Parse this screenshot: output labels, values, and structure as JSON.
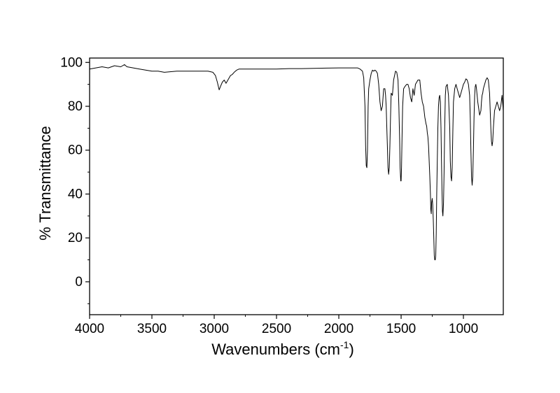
{
  "chart_data": {
    "type": "line",
    "xlabel": "Wavenumbers (cm",
    "xlabel_superscript": "-1",
    "xlabel_suffix": ")",
    "ylabel": "% Transmittance",
    "xlim": [
      4000,
      680
    ],
    "ylim": [
      -15,
      102
    ],
    "x_reversed": true,
    "grid": false,
    "x_ticks": [
      4000,
      3500,
      3000,
      2500,
      2000,
      1500,
      1000
    ],
    "x_tick_labels": [
      "4000",
      "3500",
      "3000",
      "2500",
      "2000",
      "1500",
      "1000"
    ],
    "y_ticks": [
      0,
      20,
      40,
      60,
      80,
      100
    ],
    "y_tick_labels": [
      "0",
      "20",
      "40",
      "60",
      "80",
      "100"
    ],
    "series": [
      {
        "color": "#000000",
        "x": [
          4000,
          3950,
          3900,
          3850,
          3800,
          3750,
          3720,
          3700,
          3650,
          3600,
          3550,
          3500,
          3450,
          3400,
          3300,
          3200,
          3100,
          3050,
          3010,
          2990,
          2975,
          2960,
          2950,
          2935,
          2920,
          2905,
          2890,
          2870,
          2855,
          2840,
          2820,
          2800,
          2700,
          2600,
          2500,
          2400,
          2300,
          2200,
          2100,
          2000,
          1900,
          1850,
          1830,
          1810,
          1800,
          1790,
          1785,
          1780,
          1775,
          1770,
          1765,
          1760,
          1750,
          1740,
          1730,
          1720,
          1710,
          1700,
          1690,
          1680,
          1670,
          1660,
          1650,
          1640,
          1630,
          1625,
          1620,
          1615,
          1610,
          1605,
          1600,
          1595,
          1590,
          1585,
          1580,
          1570,
          1560,
          1545,
          1535,
          1525,
          1518,
          1512,
          1508,
          1503,
          1500,
          1497,
          1493,
          1488,
          1480,
          1470,
          1455,
          1445,
          1435,
          1425,
          1415,
          1405,
          1395,
          1385,
          1375,
          1365,
          1350,
          1340,
          1330,
          1320,
          1310,
          1300,
          1295,
          1290,
          1285,
          1280,
          1275,
          1270,
          1265,
          1262,
          1258,
          1255,
          1250,
          1246,
          1242,
          1238,
          1234,
          1230,
          1226,
          1222,
          1218,
          1214,
          1210,
          1205,
          1200,
          1195,
          1190,
          1185,
          1180,
          1176,
          1172,
          1168,
          1165,
          1160,
          1155,
          1150,
          1145,
          1140,
          1130,
          1120,
          1110,
          1105,
          1100,
          1095,
          1090,
          1085,
          1080,
          1070,
          1060,
          1050,
          1040,
          1030,
          1020,
          1010,
          1000,
          990,
          980,
          970,
          960,
          950,
          945,
          940,
          935,
          930,
          925,
          920,
          915,
          910,
          905,
          900,
          895,
          890,
          885,
          880,
          870,
          860,
          855,
          850,
          845,
          840,
          830,
          820,
          810,
          800,
          790,
          785,
          780,
          775,
          770,
          765,
          760,
          750,
          740,
          730,
          720,
          710,
          700,
          690,
          680
        ],
        "y": [
          97,
          97.5,
          98,
          97.5,
          98.5,
          98,
          99,
          98,
          97.5,
          97,
          96.5,
          96,
          96,
          95.5,
          96,
          96,
          96,
          96,
          95.5,
          94,
          91,
          87.5,
          89,
          91,
          92,
          90.5,
          92,
          94,
          94.5,
          95.5,
          96.5,
          97,
          97,
          97,
          97,
          97.2,
          97.2,
          97.3,
          97.4,
          97.5,
          97.5,
          97.5,
          97,
          96,
          93,
          80,
          62,
          53,
          52,
          60,
          80,
          88,
          92,
          95,
          96.5,
          96,
          96.5,
          96,
          95,
          90,
          82,
          78,
          80,
          88,
          88,
          85,
          80,
          70,
          62,
          52,
          49,
          52,
          62,
          75,
          86,
          85,
          92,
          96,
          95.5,
          92,
          80,
          65,
          52,
          46,
          46,
          52,
          65,
          80,
          88,
          89,
          90,
          90,
          88,
          84,
          82,
          88,
          85,
          90,
          91,
          92,
          92,
          86,
          82,
          80,
          75,
          72,
          71,
          68,
          66,
          62,
          55,
          48,
          40,
          33,
          31,
          36,
          38,
          35,
          28,
          20,
          12,
          10,
          10,
          12,
          22,
          40,
          55,
          70,
          80,
          84,
          85,
          82,
          70,
          55,
          42,
          32,
          30,
          36,
          50,
          70,
          85,
          89,
          90,
          85,
          70,
          55,
          48,
          46,
          52,
          68,
          82,
          88,
          90,
          88,
          86,
          84,
          86,
          88,
          90,
          91,
          92.5,
          92,
          90,
          85,
          75,
          60,
          48,
          44,
          48,
          60,
          75,
          85,
          89,
          90,
          88,
          85,
          82,
          80,
          76,
          78,
          82,
          85,
          86,
          88,
          90,
          92,
          93,
          92,
          86,
          78,
          70,
          64,
          62,
          64,
          70,
          78,
          80,
          82,
          80,
          78,
          80,
          85,
          78
        ]
      }
    ]
  }
}
